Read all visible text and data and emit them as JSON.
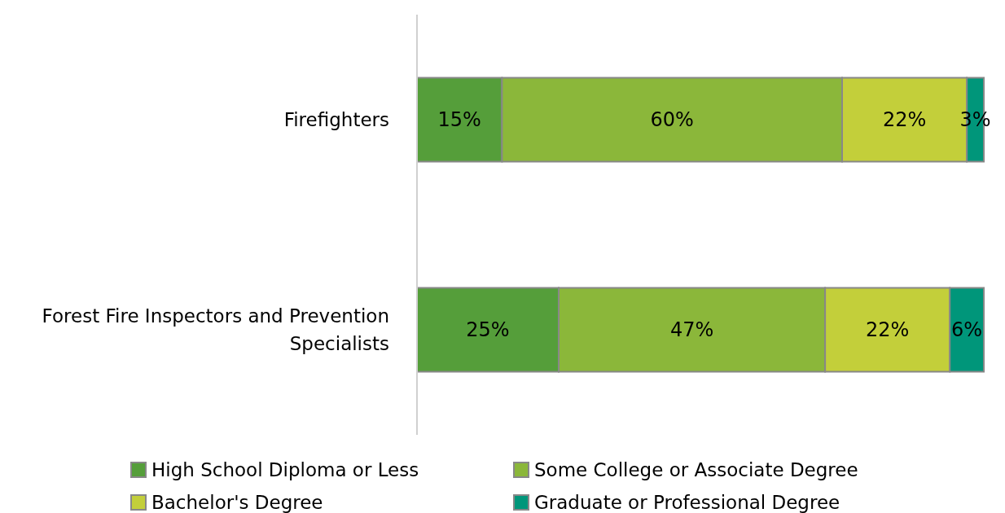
{
  "chart_data": {
    "type": "bar",
    "orientation": "horizontal",
    "stacked": true,
    "legend": "bottom",
    "categories": [
      "Firefighters",
      "Forest Fire Inspectors and Prevention Specialists"
    ],
    "series": [
      {
        "name": "High School Diploma or Less",
        "color": "#559e3a",
        "values": [
          15,
          25
        ],
        "value_labels": [
          "15%",
          "25%"
        ]
      },
      {
        "name": "Some College or Associate Degree",
        "color": "#8bb73a",
        "values": [
          60,
          47
        ],
        "value_labels": [
          "60%",
          "47%"
        ]
      },
      {
        "name": "Bachelor's Degree",
        "color": "#c3cf3a",
        "values": [
          22,
          22
        ],
        "value_labels": [
          "22%",
          "22%"
        ]
      },
      {
        "name": "Graduate or Professional Degree",
        "color": "#00967a",
        "values": [
          3,
          6
        ],
        "value_labels": [
          "3%",
          "6%"
        ]
      }
    ]
  }
}
